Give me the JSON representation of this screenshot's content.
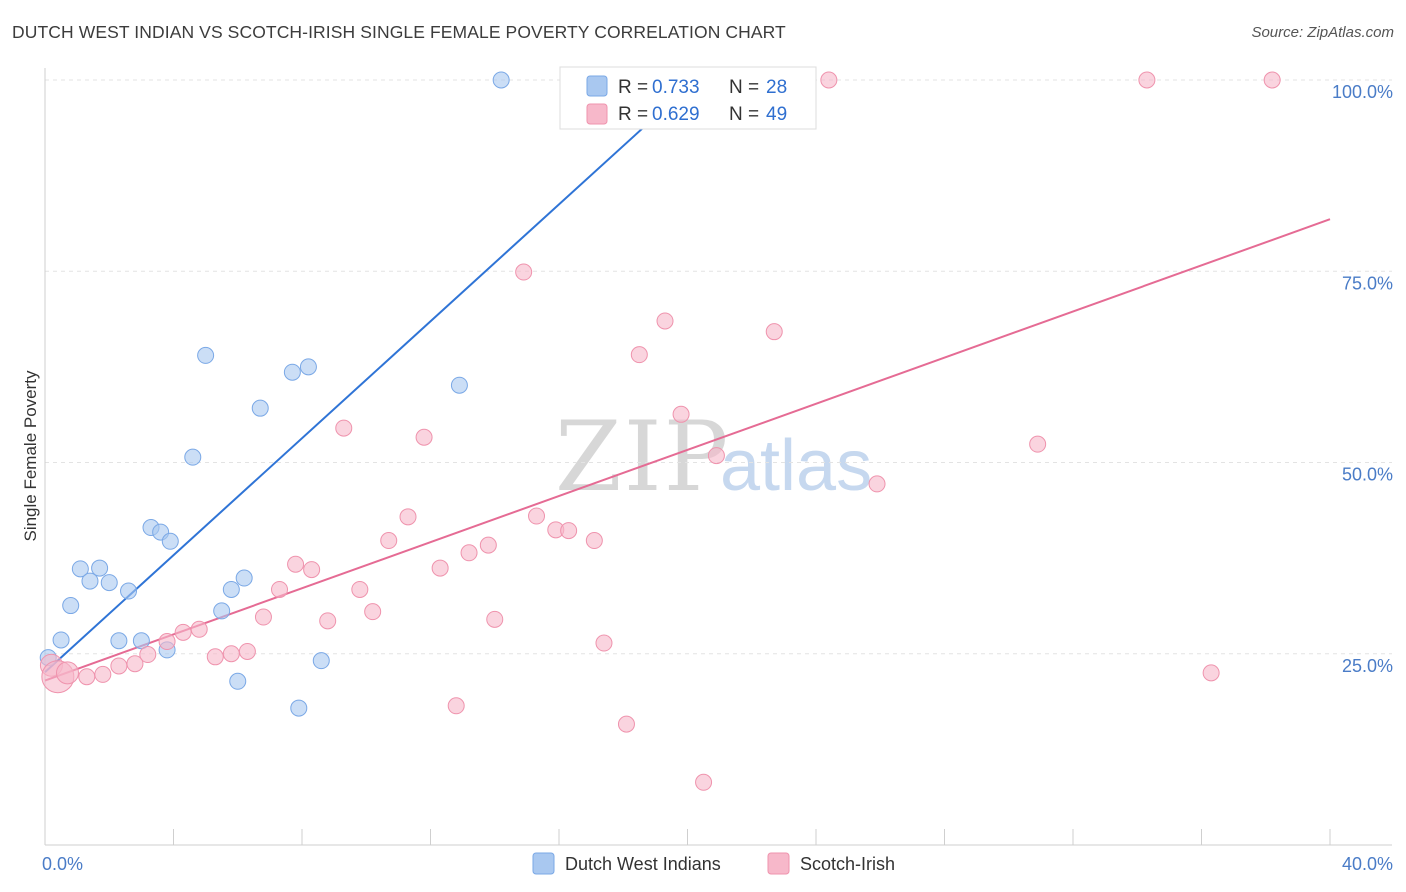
{
  "title": "DUTCH WEST INDIAN VS SCOTCH-IRISH SINGLE FEMALE POVERTY CORRELATION CHART",
  "source": "Source: ZipAtlas.com",
  "watermark": {
    "zip": "ZIP",
    "atlas": "atlas"
  },
  "colors": {
    "blue_fill": "#a9c8f0",
    "blue_stroke": "#7aa8e6",
    "blue_line": "#2f74d6",
    "pink_fill": "#f7b8ca",
    "pink_stroke": "#ef93ad",
    "pink_line": "#e56b94"
  },
  "legend": {
    "r_label": "R =",
    "n_label": "N =",
    "blue": {
      "r": "0.733",
      "n": "28"
    },
    "pink": {
      "r": "0.629",
      "n": "49"
    }
  },
  "chart_data": {
    "type": "scatter",
    "xlabel": "",
    "ylabel": "Single Female Poverty",
    "xlim": [
      0,
      40
    ],
    "ylim": [
      0,
      102
    ],
    "x_tick_labels": [
      "0.0%",
      "40.0%"
    ],
    "y_ticks": [
      25,
      50,
      75,
      100
    ],
    "y_tick_labels": [
      "25.0%",
      "50.0%",
      "75.0%",
      "100.0%"
    ],
    "series": [
      {
        "name": "Dutch West Indians",
        "color": "blue",
        "points": [
          [
            0.1,
            24.5
          ],
          [
            0.5,
            26.8
          ],
          [
            0.8,
            31.3
          ],
          [
            1.1,
            36.1
          ],
          [
            1.4,
            34.5
          ],
          [
            1.7,
            36.2
          ],
          [
            2.0,
            34.3
          ],
          [
            2.3,
            26.7
          ],
          [
            2.6,
            33.2
          ],
          [
            3.0,
            26.7
          ],
          [
            3.3,
            41.5
          ],
          [
            3.6,
            40.9
          ],
          [
            3.9,
            39.7
          ],
          [
            3.8,
            25.5
          ],
          [
            4.6,
            50.7
          ],
          [
            5.0,
            64.0
          ],
          [
            5.5,
            30.6
          ],
          [
            5.8,
            33.4
          ],
          [
            6.0,
            21.4
          ],
          [
            6.2,
            34.9
          ],
          [
            6.7,
            57.1
          ],
          [
            7.7,
            61.8
          ],
          [
            7.9,
            17.9
          ],
          [
            8.2,
            62.5
          ],
          [
            8.6,
            24.1
          ],
          [
            12.9,
            60.1
          ],
          [
            14.2,
            100.0
          ],
          [
            16.4,
            100.0
          ]
        ],
        "trend": {
          "x": [
            0,
            19.6
          ],
          "y": [
            22.6,
            97.5
          ]
        }
      },
      {
        "name": "Scotch-Irish",
        "color": "pink",
        "points": [
          [
            0.2,
            23.5
          ],
          [
            0.4,
            22.0
          ],
          [
            0.7,
            22.5
          ],
          [
            1.3,
            22.0
          ],
          [
            1.8,
            22.3
          ],
          [
            2.3,
            23.4
          ],
          [
            2.8,
            23.7
          ],
          [
            3.2,
            24.9
          ],
          [
            3.8,
            26.6
          ],
          [
            4.3,
            27.8
          ],
          [
            4.8,
            28.2
          ],
          [
            5.3,
            24.6
          ],
          [
            5.8,
            25.0
          ],
          [
            6.3,
            25.3
          ],
          [
            6.8,
            29.8
          ],
          [
            7.3,
            33.4
          ],
          [
            7.8,
            36.7
          ],
          [
            8.3,
            36.0
          ],
          [
            8.8,
            29.3
          ],
          [
            9.3,
            54.5
          ],
          [
            9.8,
            33.4
          ],
          [
            10.2,
            30.5
          ],
          [
            10.7,
            39.8
          ],
          [
            11.3,
            42.9
          ],
          [
            11.8,
            53.3
          ],
          [
            12.3,
            36.2
          ],
          [
            12.8,
            18.2
          ],
          [
            13.2,
            38.2
          ],
          [
            13.8,
            39.2
          ],
          [
            14.0,
            29.5
          ],
          [
            14.9,
            74.9
          ],
          [
            15.3,
            43.0
          ],
          [
            15.9,
            41.2
          ],
          [
            16.3,
            41.1
          ],
          [
            17.1,
            39.8
          ],
          [
            17.4,
            26.4
          ],
          [
            18.1,
            15.8
          ],
          [
            18.5,
            64.1
          ],
          [
            19.3,
            68.5
          ],
          [
            19.8,
            56.3
          ],
          [
            20.5,
            8.2
          ],
          [
            20.9,
            50.9
          ],
          [
            22.7,
            67.1
          ],
          [
            24.4,
            100.0
          ],
          [
            25.9,
            47.2
          ],
          [
            30.9,
            52.4
          ],
          [
            34.3,
            100.0
          ],
          [
            36.3,
            22.5
          ],
          [
            38.2,
            100.0
          ]
        ],
        "trend": {
          "x": [
            0,
            40
          ],
          "y": [
            21.5,
            81.8
          ]
        }
      }
    ]
  },
  "bottom_legend": {
    "blue_label": "Dutch West Indians",
    "pink_label": "Scotch-Irish"
  }
}
